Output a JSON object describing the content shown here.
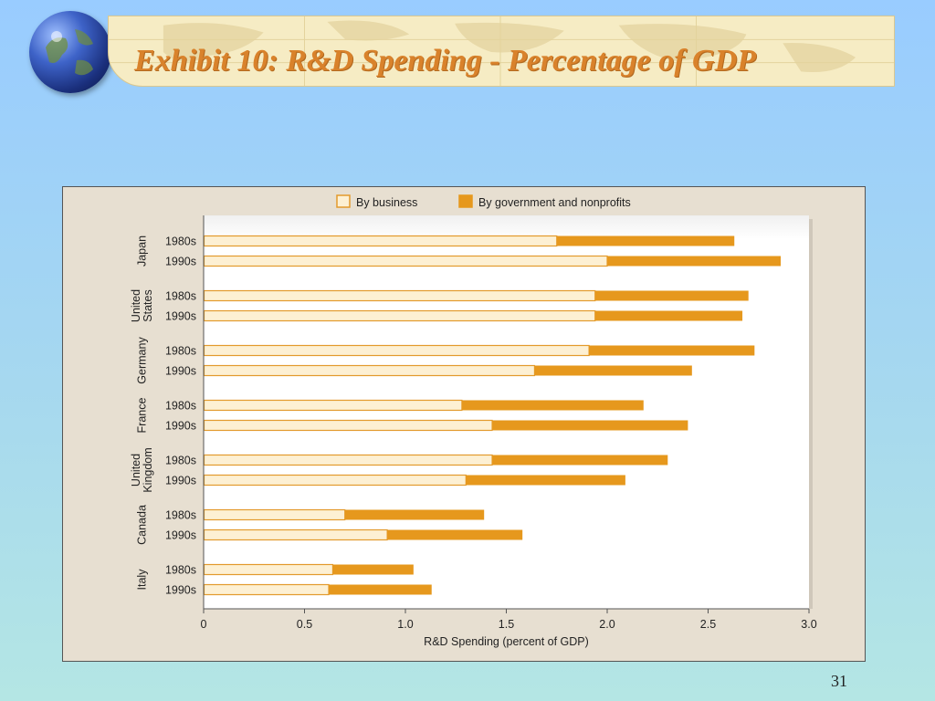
{
  "slide": {
    "title": "Exhibit 10: R&D Spending - Percentage of GDP",
    "page_number": "31"
  },
  "icons": {
    "logo": "globe-icon",
    "banner_background": "world-map-icon"
  },
  "colors": {
    "title": "#d9822b",
    "business_fill": "#fdf0d3",
    "business_stroke": "#e39a2c",
    "government_fill": "#e6981d",
    "chart_background": "#e7dfd1",
    "plot_background": "#ffffff"
  },
  "chart_data": {
    "type": "bar",
    "orientation": "horizontal",
    "stacked": true,
    "xlabel": "R&D Spending (percent of GDP)",
    "xlim": [
      0,
      3.0
    ],
    "xticks": [
      0,
      0.5,
      1.0,
      1.5,
      2.0,
      2.5,
      3.0
    ],
    "xtick_labels": [
      "0",
      "0.5",
      "1.0",
      "1.5",
      "2.0",
      "2.5",
      "3.0"
    ],
    "legend_position": "top",
    "grid": false,
    "legend": [
      {
        "label": "By business"
      },
      {
        "label": "By government and nonprofits"
      }
    ],
    "groups": [
      {
        "label": [
          "Japan"
        ],
        "rows": [
          {
            "label": "1980s",
            "business": 1.75,
            "government": 0.88
          },
          {
            "label": "1990s",
            "business": 2.0,
            "government": 0.86
          }
        ]
      },
      {
        "label": [
          "United",
          "States"
        ],
        "rows": [
          {
            "label": "1980s",
            "business": 1.94,
            "government": 0.76
          },
          {
            "label": "1990s",
            "business": 1.94,
            "government": 0.73
          }
        ]
      },
      {
        "label": [
          "Germany"
        ],
        "rows": [
          {
            "label": "1980s",
            "business": 1.91,
            "government": 0.82
          },
          {
            "label": "1990s",
            "business": 1.64,
            "government": 0.78
          }
        ]
      },
      {
        "label": [
          "France"
        ],
        "rows": [
          {
            "label": "1980s",
            "business": 1.28,
            "government": 0.9
          },
          {
            "label": "1990s",
            "business": 1.43,
            "government": 0.97
          }
        ]
      },
      {
        "label": [
          "United",
          "Kingdom"
        ],
        "rows": [
          {
            "label": "1980s",
            "business": 1.43,
            "government": 0.87
          },
          {
            "label": "1990s",
            "business": 1.3,
            "government": 0.79
          }
        ]
      },
      {
        "label": [
          "Canada"
        ],
        "rows": [
          {
            "label": "1980s",
            "business": 0.7,
            "government": 0.69
          },
          {
            "label": "1990s",
            "business": 0.91,
            "government": 0.67
          }
        ]
      },
      {
        "label": [
          "Italy"
        ],
        "rows": [
          {
            "label": "1980s",
            "business": 0.64,
            "government": 0.4
          },
          {
            "label": "1990s",
            "business": 0.62,
            "government": 0.51
          }
        ]
      }
    ]
  }
}
